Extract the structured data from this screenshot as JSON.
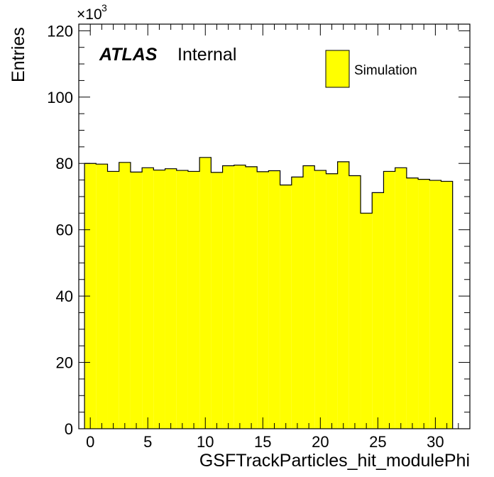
{
  "chart_data": {
    "type": "bar",
    "style": "step-histogram",
    "x_label": "GSFTrackParticles_hit_modulePhi",
    "y_label": "Entries",
    "y_multiplier": "×10",
    "y_multiplier_exponent": "3",
    "xlim": [
      -1,
      33
    ],
    "ylim": [
      0,
      122
    ],
    "x_ticks": [
      0,
      5,
      10,
      15,
      20,
      25,
      30
    ],
    "y_ticks": [
      0,
      20,
      40,
      60,
      80,
      100,
      120
    ],
    "bin_edges_start": -0.5,
    "bin_width": 1,
    "bins_x": [
      0,
      1,
      2,
      3,
      4,
      5,
      6,
      7,
      8,
      9,
      10,
      11,
      12,
      13,
      14,
      15,
      16,
      17,
      18,
      19,
      20,
      21,
      22,
      23,
      24,
      25,
      26,
      27,
      28,
      29,
      30,
      31
    ],
    "values": [
      80.0,
      79.8,
      77.6,
      80.3,
      77.4,
      78.7,
      78.0,
      78.4,
      77.9,
      77.6,
      81.8,
      77.3,
      79.3,
      79.5,
      79.0,
      77.5,
      77.8,
      73.5,
      75.9,
      79.3,
      77.9,
      76.9,
      80.5,
      76.3,
      65.0,
      71.2,
      77.6,
      78.7,
      75.6,
      75.2,
      74.9,
      74.6
    ],
    "series": [
      {
        "name": "Simulation",
        "color": "#ffff00"
      }
    ],
    "legend_position": "top-right",
    "grid": false
  },
  "annotations": {
    "atlas": "ATLAS",
    "internal": "Internal"
  },
  "colors": {
    "fill": "#ffff00",
    "line": "#000000"
  }
}
